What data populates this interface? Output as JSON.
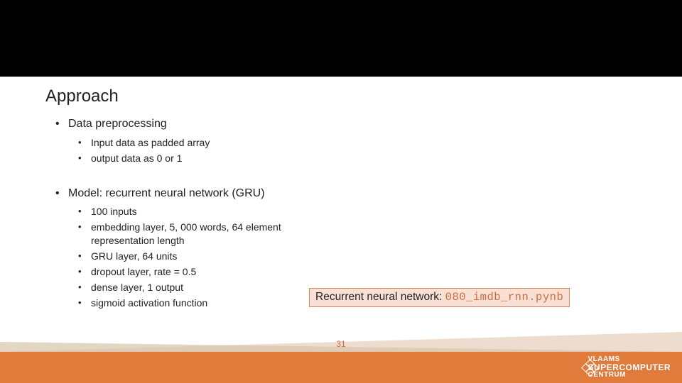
{
  "colors": {
    "top_band": "#000000",
    "background": "#ffffff",
    "footer_band": "#e07b3c",
    "footer_wedge_light": "#ead9c9",
    "footer_wedge_dark": "#d9c4ad",
    "callout_bg": "#f9e0d4",
    "callout_border": "#d08a5c",
    "callout_code_color": "#d06a3a",
    "page_num_color": "#d06a3a",
    "text_color": "#222222",
    "logo_text_color": "#ffffff"
  },
  "title": "Approach",
  "bullets": {
    "section1": {
      "heading": "Data preprocessing",
      "items": [
        "Input data as  padded array",
        "output data as 0 or 1"
      ]
    },
    "section2": {
      "heading": "Model: recurrent neural network (GRU)",
      "items": [
        "100 inputs",
        "embedding layer, 5, 000 words, 64 element representation length",
        "GRU layer, 64 units",
        "dropout layer, rate = 0.5",
        "dense layer, 1 output",
        "sigmoid activation function"
      ]
    }
  },
  "callout": {
    "label": "Recurrent neural network: ",
    "code": "080_imdb_rnn.pynb"
  },
  "page_number": "31",
  "logo": {
    "line1": "VLAAMS",
    "line2": "SUPERCOMPUTER",
    "line3": "CENTRUM"
  }
}
